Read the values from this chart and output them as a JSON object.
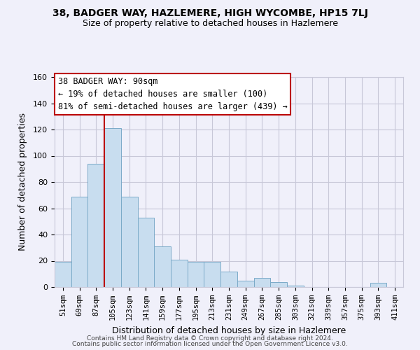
{
  "title": "38, BADGER WAY, HAZLEMERE, HIGH WYCOMBE, HP15 7LJ",
  "subtitle": "Size of property relative to detached houses in Hazlemere",
  "xlabel": "Distribution of detached houses by size in Hazlemere",
  "ylabel": "Number of detached properties",
  "categories": [
    "51sqm",
    "69sqm",
    "87sqm",
    "105sqm",
    "123sqm",
    "141sqm",
    "159sqm",
    "177sqm",
    "195sqm",
    "213sqm",
    "231sqm",
    "249sqm",
    "267sqm",
    "285sqm",
    "303sqm",
    "321sqm",
    "339sqm",
    "357sqm",
    "375sqm",
    "393sqm",
    "411sqm"
  ],
  "values": [
    19,
    69,
    94,
    121,
    69,
    53,
    31,
    21,
    19,
    19,
    12,
    5,
    7,
    4,
    1,
    0,
    0,
    0,
    0,
    3,
    0
  ],
  "bar_color": "#c8ddef",
  "bar_edge_color": "#7aaac8",
  "ylim": [
    0,
    160
  ],
  "yticks": [
    0,
    20,
    40,
    60,
    80,
    100,
    120,
    140,
    160
  ],
  "vline_x_index": 2,
  "vline_color": "#bb0000",
  "annotation_title": "38 BADGER WAY: 90sqm",
  "annotation_line1": "← 19% of detached houses are smaller (100)",
  "annotation_line2": "81% of semi-detached houses are larger (439) →",
  "footer_line1": "Contains HM Land Registry data © Crown copyright and database right 2024.",
  "footer_line2": "Contains public sector information licensed under the Open Government Licence v3.0.",
  "background_color": "#f0f0fa",
  "grid_color": "#c8c8d8",
  "plot_bg_color": "#f0f0fa"
}
